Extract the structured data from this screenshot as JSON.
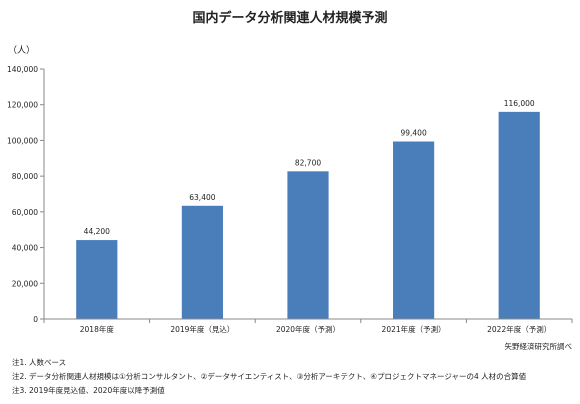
{
  "chart_data": {
    "type": "bar",
    "title": "国内データ分析関連人材規模予測",
    "unit_label": "（人）",
    "categories": [
      "2018年度",
      "2019年度（見込）",
      "2020年度（予測）",
      "2021年度（予測）",
      "2022年度（予測）"
    ],
    "values": [
      44200,
      63400,
      82700,
      99400,
      116000
    ],
    "data_labels": [
      "44,200",
      "63,400",
      "82,700",
      "99,400",
      "116,000"
    ],
    "ylim": [
      0,
      140000
    ],
    "yticks": [
      0,
      20000,
      40000,
      60000,
      80000,
      100000,
      120000,
      140000
    ],
    "ytick_labels": [
      "0",
      "20,000",
      "40,000",
      "60,000",
      "80,000",
      "100,000",
      "120,000",
      "140,000"
    ],
    "bar_color": "#4a7ebb",
    "grid": false
  },
  "source": "矢野経済研究所調べ",
  "notes": [
    "注1. 人数ベース",
    "注2. データ分析関連人材規模は①分析コンサルタント、②データサイエンティスト、③分析アーキテクト、④プロジェクトマネージャーの4 人材の合算値",
    "注3. 2019年度見込値、2020年度以降予測値"
  ]
}
